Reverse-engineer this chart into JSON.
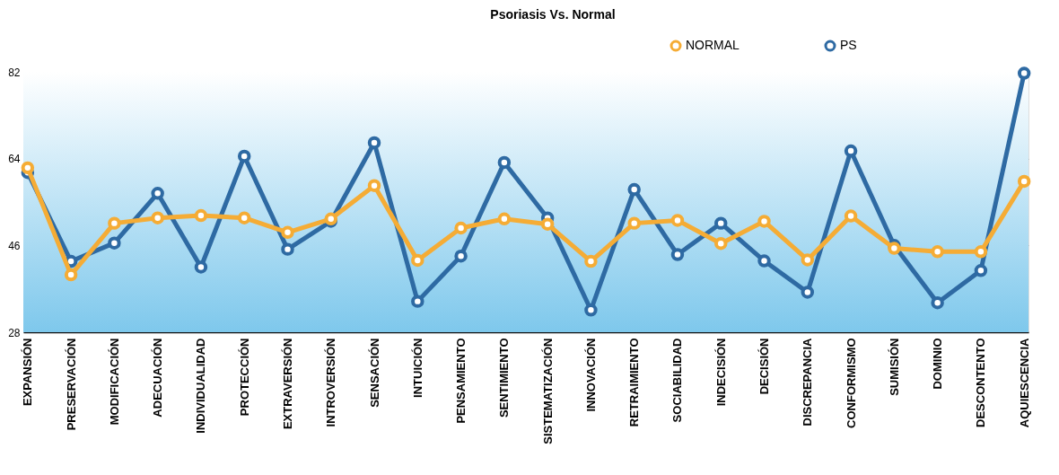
{
  "chart_data": {
    "type": "line",
    "title": "Psoriasis Vs. Normal",
    "categories": [
      "EXPANSIÓN",
      "PRESERVACIÓN",
      "MODIFICACIÓN",
      "ADECUACIÓN",
      "INDIVIDUALIDAD",
      "PROTECCIÓN",
      "EXTRAVERSIÓN",
      "INTROVERSIÓN",
      "SENSACIÓN",
      "INTUICIÓN",
      "PENSAMIENTO",
      "SENTIMIENTO",
      "SISTEMATIZACIÓN",
      "INNOVACIÓN",
      "RETRAIMIENTO",
      "SOCIABILIDAD",
      "INDECISIÓN",
      "DECISIÓN",
      "DISCREPANCIA",
      "CONFORMISMO",
      "SUMISIÓN",
      "DOMINIO",
      "DESCONTENTO",
      "AQUIESCENCIA"
    ],
    "series": [
      {
        "name": "PS",
        "color": "#2e6aa3",
        "values": [
          61.1,
          42.7,
          46.5,
          56.8,
          41.5,
          64.5,
          45.2,
          51.0,
          67.3,
          34.4,
          43.8,
          63.2,
          51.7,
          32.6,
          57.6,
          44.1,
          50.6,
          42.8,
          36.3,
          65.6,
          46.0,
          34.1,
          40.8,
          81.7
        ]
      },
      {
        "name": "NORMAL",
        "color": "#f5ac35",
        "values": [
          62.1,
          39.9,
          50.6,
          51.7,
          52.2,
          51.7,
          48.7,
          51.5,
          58.4,
          42.9,
          49.6,
          51.5,
          50.4,
          42.7,
          50.6,
          51.2,
          46.4,
          51.0,
          43.0,
          52.1,
          45.4,
          44.7,
          44.7,
          59.3
        ]
      }
    ],
    "ylim": [
      28,
      82
    ],
    "yticks": [
      28,
      46,
      64,
      82
    ],
    "grid": "y",
    "legend": "top right",
    "marker": "circle",
    "line_style": "solid"
  }
}
